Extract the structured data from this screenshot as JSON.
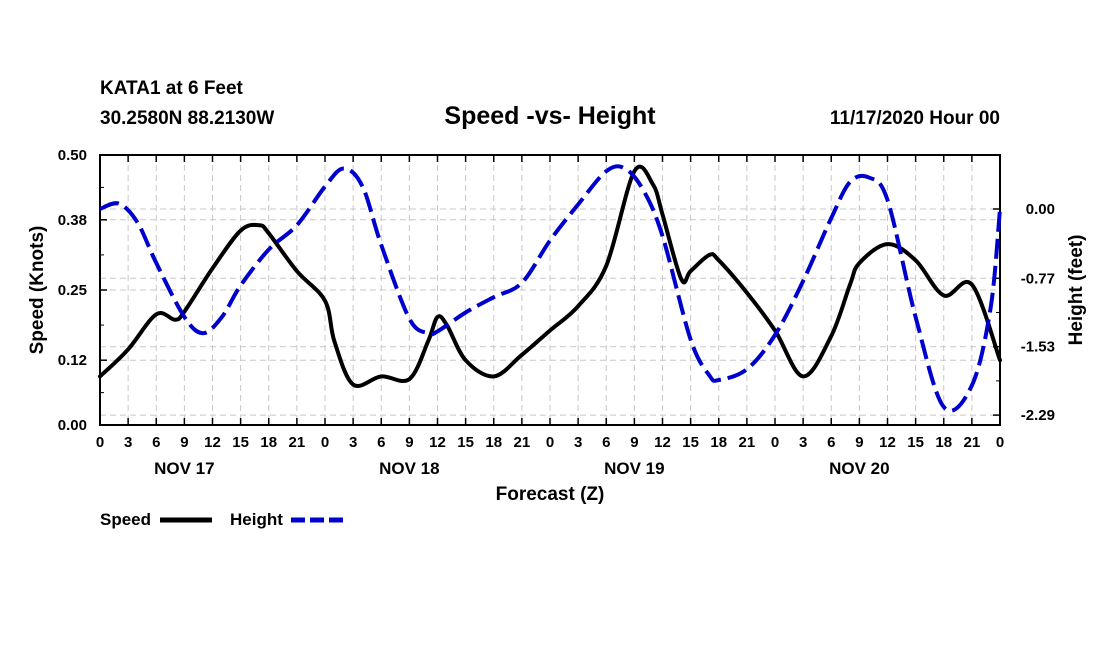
{
  "header": {
    "station": "KATA1 at 6 Feet",
    "coords": "30.2580N 88.2130W",
    "title": "Speed -vs- Height",
    "timestamp": "11/17/2020 Hour 00"
  },
  "chart_data": {
    "type": "line",
    "title": "Speed -vs- Height",
    "xlabel": "Forecast (Z)",
    "ylabel": "Speed (Knots)",
    "ylabel_right": "Height (feet)",
    "x_unit": "hours from 11/17 00Z",
    "xlim": [
      0,
      96
    ],
    "ylim": [
      0,
      0.5
    ],
    "ylim_right": [
      -2.4,
      0.6
    ],
    "left_ticks": [
      "0.00",
      "0.12",
      "0.25",
      "0.38",
      "0.50"
    ],
    "right_ticks": [
      {
        "value": 0.0,
        "label": "0.00"
      },
      {
        "value": -0.77,
        "label": "-0.77"
      },
      {
        "value": -1.53,
        "label": "-1.53"
      },
      {
        "value": -2.29,
        "label": "-2.29"
      }
    ],
    "x_tick_hours": [
      0,
      3,
      6,
      9,
      12,
      15,
      18,
      21,
      24,
      27,
      30,
      33,
      36,
      39,
      42,
      45,
      48,
      51,
      54,
      57,
      60,
      63,
      66,
      69,
      72,
      75,
      78,
      81,
      84,
      87,
      90,
      93,
      96
    ],
    "x_tick_labels": [
      "0",
      "3",
      "6",
      "9",
      "12",
      "15",
      "18",
      "21",
      "0",
      "3",
      "6",
      "9",
      "12",
      "15",
      "18",
      "21",
      "0",
      "3",
      "6",
      "9",
      "12",
      "15",
      "18",
      "21",
      "0",
      "3",
      "6",
      "9",
      "12",
      "15",
      "18",
      "21",
      "0"
    ],
    "date_labels": [
      {
        "hour": 9,
        "label": "NOV 17"
      },
      {
        "hour": 33,
        "label": "NOV 18"
      },
      {
        "hour": 57,
        "label": "NOV 19"
      },
      {
        "hour": 81,
        "label": "NOV 20"
      }
    ],
    "grid": true,
    "series": [
      {
        "name": "Speed",
        "axis": "left",
        "color": "#000000",
        "style": "solid",
        "x": [
          0,
          3,
          6,
          8,
          9,
          12,
          15,
          17,
          18,
          21,
          24,
          25,
          27,
          30,
          33,
          35,
          36,
          37,
          39,
          42,
          45,
          48,
          51,
          54,
          57,
          59,
          60,
          62,
          63,
          65,
          66,
          69,
          72,
          75,
          78,
          80,
          81,
          84,
          87,
          90,
          93,
          96
        ],
        "y": [
          0.09,
          0.14,
          0.205,
          0.195,
          0.21,
          0.29,
          0.36,
          0.37,
          0.355,
          0.285,
          0.23,
          0.155,
          0.075,
          0.09,
          0.085,
          0.155,
          0.2,
          0.185,
          0.12,
          0.09,
          0.13,
          0.175,
          0.22,
          0.295,
          0.47,
          0.445,
          0.39,
          0.27,
          0.285,
          0.315,
          0.305,
          0.245,
          0.175,
          0.09,
          0.165,
          0.26,
          0.3,
          0.335,
          0.305,
          0.24,
          0.26,
          0.12
        ]
      },
      {
        "name": "Height",
        "axis": "right",
        "color": "#0000cc",
        "style": "dashed",
        "x": [
          0,
          2,
          4,
          6,
          9,
          11,
          13,
          15,
          18,
          21,
          24,
          26,
          28,
          30,
          33,
          35,
          36,
          39,
          42,
          45,
          48,
          51,
          54,
          56,
          58,
          60,
          63,
          65,
          66,
          69,
          72,
          75,
          78,
          80,
          82,
          84,
          87,
          90,
          93,
          95,
          96
        ],
        "y": [
          0.0,
          0.06,
          -0.15,
          -0.6,
          -1.2,
          -1.38,
          -1.2,
          -0.85,
          -0.45,
          -0.18,
          0.25,
          0.45,
          0.25,
          -0.4,
          -1.22,
          -1.38,
          -1.36,
          -1.15,
          -0.98,
          -0.82,
          -0.35,
          0.05,
          0.42,
          0.45,
          0.2,
          -0.3,
          -1.45,
          -1.85,
          -1.9,
          -1.78,
          -1.4,
          -0.8,
          -0.1,
          0.3,
          0.35,
          0.1,
          -1.2,
          -2.2,
          -1.96,
          -1.1,
          0.0
        ]
      }
    ],
    "legend": [
      {
        "label": "Speed",
        "color": "#000000",
        "style": "solid"
      },
      {
        "label": "Height",
        "color": "#0000cc",
        "style": "dashed"
      }
    ],
    "legend_position": "bottom-left"
  }
}
